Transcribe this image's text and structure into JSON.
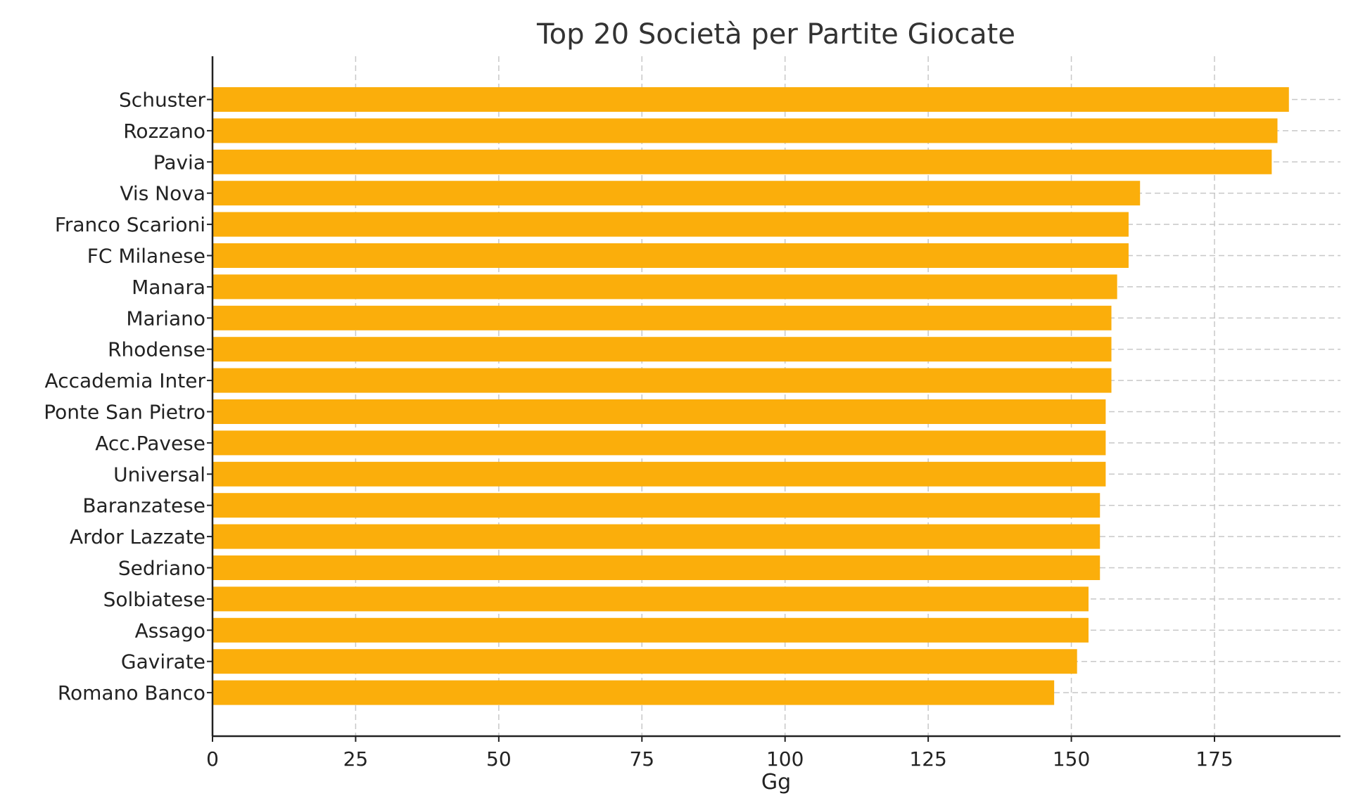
{
  "chart_data": {
    "type": "bar",
    "orientation": "horizontal",
    "title": "Top 20 Società per Partite Giocate",
    "xlabel": "Gg",
    "ylabel": "",
    "xlim": [
      0,
      197
    ],
    "xticks": [
      0,
      25,
      50,
      75,
      100,
      125,
      150,
      175
    ],
    "grid": true,
    "bar_color": "#FBAE0B",
    "categories": [
      "Schuster",
      "Rozzano",
      "Pavia",
      "Vis Nova",
      "Franco Scarioni",
      "FC Milanese",
      "Manara",
      "Mariano",
      "Rhodense",
      "Accademia Inter",
      "Ponte San Pietro",
      "Acc.Pavese",
      "Universal",
      "Baranzatese",
      "Ardor Lazzate",
      "Sedriano",
      "Solbiatese",
      "Assago",
      "Gavirate",
      "Romano Banco"
    ],
    "values": [
      188,
      186,
      185,
      162,
      160,
      160,
      158,
      157,
      157,
      157,
      156,
      156,
      156,
      155,
      155,
      155,
      153,
      153,
      151,
      147
    ]
  }
}
